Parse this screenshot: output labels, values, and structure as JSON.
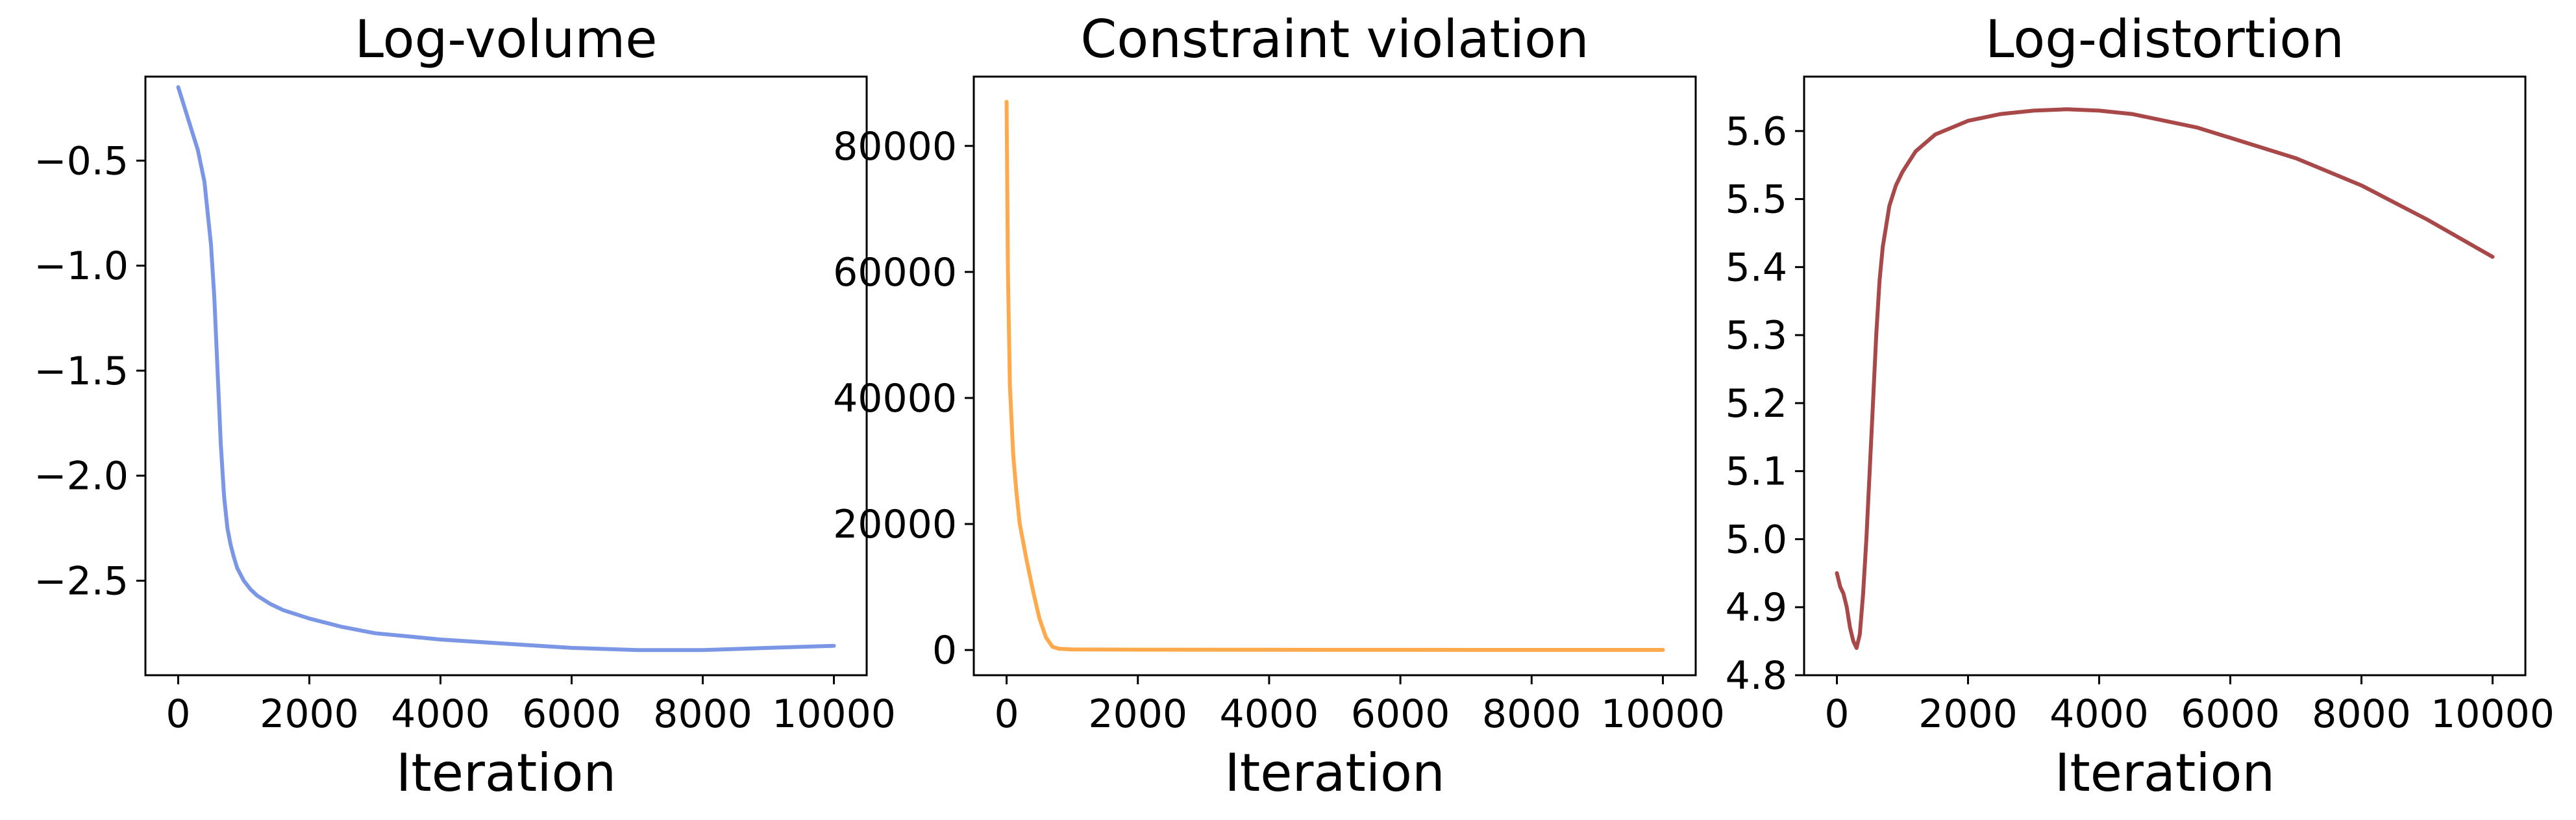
{
  "chart_data": [
    {
      "type": "line",
      "title": "Log-volume",
      "xlabel": "Iteration",
      "ylabel": "",
      "xlim": [
        -500,
        10500
      ],
      "ylim": [
        -2.95,
        -0.1
      ],
      "xticks": [
        0,
        2000,
        4000,
        6000,
        8000,
        10000
      ],
      "xtick_labels": [
        "0",
        "2000",
        "4000",
        "6000",
        "8000",
        "10000"
      ],
      "yticks": [
        -0.5,
        -1.0,
        -1.5,
        -2.0,
        -2.5
      ],
      "ytick_labels": [
        "−0.5",
        "−1.0",
        "−1.5",
        "−2.0",
        "−2.5"
      ],
      "grid": false,
      "series": [
        {
          "color": "#7b96e5",
          "x": [
            0,
            100,
            200,
            300,
            400,
            500,
            550,
            600,
            650,
            700,
            750,
            800,
            850,
            900,
            1000,
            1100,
            1200,
            1400,
            1600,
            2000,
            2500,
            3000,
            4000,
            5000,
            6000,
            7000,
            8000,
            9000,
            10000
          ],
          "y": [
            -0.15,
            -0.25,
            -0.35,
            -0.45,
            -0.6,
            -0.9,
            -1.15,
            -1.5,
            -1.85,
            -2.1,
            -2.25,
            -2.33,
            -2.39,
            -2.44,
            -2.5,
            -2.54,
            -2.57,
            -2.61,
            -2.64,
            -2.68,
            -2.72,
            -2.75,
            -2.78,
            -2.8,
            -2.82,
            -2.83,
            -2.83,
            -2.82,
            -2.81
          ]
        }
      ]
    },
    {
      "type": "line",
      "title": "Constraint violation",
      "xlabel": "Iteration",
      "ylabel": "",
      "xlim": [
        -500,
        10500
      ],
      "ylim": [
        -4000,
        91000
      ],
      "xticks": [
        0,
        2000,
        4000,
        6000,
        8000,
        10000
      ],
      "xtick_labels": [
        "0",
        "2000",
        "4000",
        "6000",
        "8000",
        "10000"
      ],
      "yticks": [
        0,
        20000,
        40000,
        60000,
        80000
      ],
      "ytick_labels": [
        "0",
        "20000",
        "40000",
        "60000",
        "80000"
      ],
      "grid": false,
      "series": [
        {
          "color": "#ffa94d",
          "x": [
            0,
            20,
            50,
            100,
            150,
            200,
            300,
            400,
            500,
            600,
            700,
            800,
            1000,
            2000,
            4000,
            6000,
            8000,
            10000
          ],
          "y": [
            87000,
            60000,
            42000,
            31000,
            25000,
            20000,
            14500,
            9500,
            5000,
            2000,
            500,
            200,
            100,
            60,
            40,
            30,
            20,
            20
          ]
        }
      ]
    },
    {
      "type": "line",
      "title": "Log-distortion",
      "xlabel": "Iteration",
      "ylabel": "",
      "xlim": [
        -500,
        10500
      ],
      "ylim": [
        4.8,
        5.68
      ],
      "xticks": [
        0,
        2000,
        4000,
        6000,
        8000,
        10000
      ],
      "xtick_labels": [
        "0",
        "2000",
        "4000",
        "6000",
        "8000",
        "10000"
      ],
      "yticks": [
        4.8,
        4.9,
        5.0,
        5.1,
        5.2,
        5.3,
        5.4,
        5.5,
        5.6
      ],
      "ytick_labels": [
        "4.8",
        "4.9",
        "5.0",
        "5.1",
        "5.2",
        "5.3",
        "5.4",
        "5.5",
        "5.6"
      ],
      "grid": false,
      "series": [
        {
          "color": "#a84848",
          "x": [
            0,
            50,
            100,
            150,
            200,
            250,
            300,
            350,
            400,
            450,
            500,
            550,
            600,
            650,
            700,
            750,
            800,
            900,
            1000,
            1200,
            1500,
            2000,
            2500,
            3000,
            3500,
            4000,
            4500,
            5000,
            5500,
            6000,
            7000,
            8000,
            9000,
            10000
          ],
          "y": [
            4.95,
            4.93,
            4.92,
            4.9,
            4.87,
            4.85,
            4.84,
            4.86,
            4.92,
            5.0,
            5.1,
            5.2,
            5.3,
            5.38,
            5.43,
            5.46,
            5.49,
            5.52,
            5.54,
            5.57,
            5.595,
            5.615,
            5.625,
            5.63,
            5.632,
            5.63,
            5.625,
            5.615,
            5.605,
            5.59,
            5.56,
            5.52,
            5.47,
            5.415
          ]
        }
      ]
    }
  ]
}
